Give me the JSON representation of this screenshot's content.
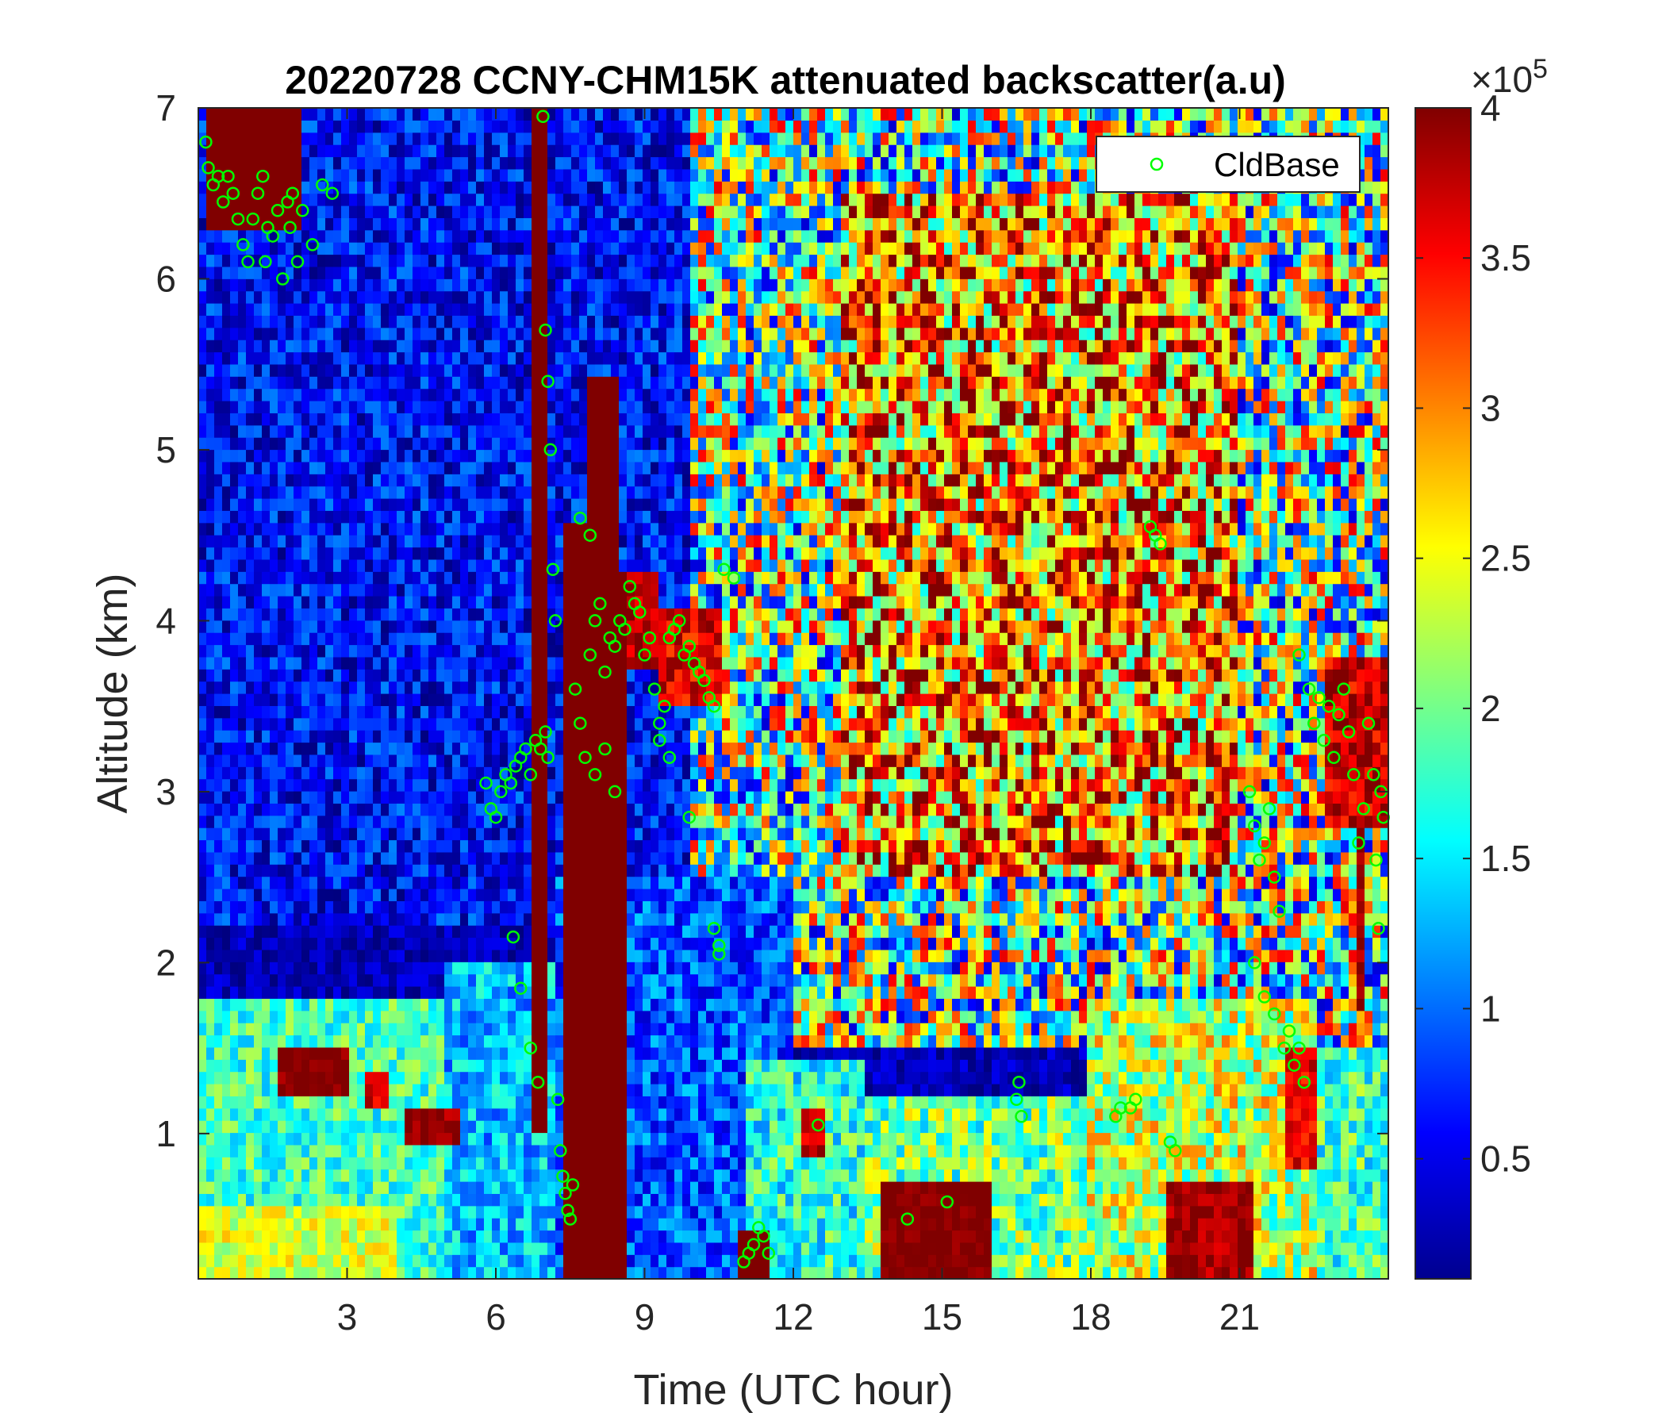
{
  "chart_data": {
    "type": "heatmap",
    "title": "20220728 CCNY-CHM15K attenuated backscatter(a.u)",
    "xlabel": "Time (UTC hour)",
    "ylabel": "Altitude (km)",
    "xlim": [
      0,
      24
    ],
    "ylim": [
      0.15,
      7
    ],
    "xticks": [
      3,
      6,
      9,
      12,
      15,
      18,
      21
    ],
    "xtick_labels": [
      "3",
      "6",
      "9",
      "12",
      "15",
      "18",
      "21"
    ],
    "yticks": [
      1,
      2,
      3,
      4,
      5,
      6,
      7
    ],
    "ytick_labels": [
      "1",
      "2",
      "3",
      "4",
      "5",
      "6",
      "7"
    ],
    "colorbar": {
      "colormap": "jet",
      "range": [
        0.1,
        4
      ],
      "ticks": [
        0.5,
        1,
        1.5,
        2,
        2.5,
        3,
        3.5,
        4
      ],
      "tick_labels": [
        "0.5",
        "1",
        "1.5",
        "2",
        "2.5",
        "3",
        "3.5",
        "4"
      ],
      "multiplier_base": "×10",
      "multiplier_exp": "5"
    },
    "legend": {
      "position": "top-right",
      "entries": [
        {
          "label": "CldBase",
          "marker": "circle",
          "color": "#00ff00"
        }
      ]
    },
    "regions": [
      {
        "x0": 0,
        "x1": 24,
        "y0": 2.2,
        "y1": 7,
        "level": 0.6,
        "noise": 0.5
      },
      {
        "x0": 10,
        "x1": 24,
        "y0": 1.5,
        "y1": 7,
        "level": 2.0,
        "noise": 1.6
      },
      {
        "x0": 13,
        "x1": 21,
        "y0": 2.5,
        "y1": 6.5,
        "level": 3.0,
        "noise": 1.4
      },
      {
        "x0": 0,
        "x1": 5,
        "y0": 0.15,
        "y1": 1.8,
        "level": 1.8,
        "noise": 0.5
      },
      {
        "x0": 5,
        "x1": 7.2,
        "y0": 0.15,
        "y1": 2.0,
        "level": 1.3,
        "noise": 0.5
      },
      {
        "x0": 0,
        "x1": 4,
        "y0": 0.15,
        "y1": 0.6,
        "level": 2.4,
        "noise": 0.4
      },
      {
        "x0": 7.2,
        "x1": 12,
        "y0": 0.15,
        "y1": 2.5,
        "level": 0.9,
        "noise": 0.5
      },
      {
        "x0": 11,
        "x1": 13.5,
        "y0": 0.15,
        "y1": 1.4,
        "level": 1.7,
        "noise": 0.6
      },
      {
        "x0": 13.5,
        "x1": 24,
        "y0": 0.15,
        "y1": 1.2,
        "level": 2.0,
        "noise": 0.7
      },
      {
        "x0": 18,
        "x1": 22.5,
        "y0": 0.15,
        "y1": 1.8,
        "level": 2.3,
        "noise": 0.8
      },
      {
        "x0": 22.5,
        "x1": 24,
        "y0": 0.15,
        "y1": 1.5,
        "level": 1.8,
        "noise": 0.6
      },
      {
        "x0": 0.1,
        "x1": 2.1,
        "y0": 6.3,
        "y1": 7,
        "level": 4,
        "noise": 0
      },
      {
        "x0": 1.6,
        "x1": 3.0,
        "y0": 1.25,
        "y1": 1.5,
        "level": 4,
        "noise": 0.2
      },
      {
        "x0": 3.3,
        "x1": 3.9,
        "y0": 1.15,
        "y1": 1.35,
        "level": 3.6,
        "noise": 0.3
      },
      {
        "x0": 4.1,
        "x1": 5.2,
        "y0": 0.9,
        "y1": 1.15,
        "level": 3.8,
        "noise": 0.3
      },
      {
        "x0": 6.8,
        "x1": 7.0,
        "y0": 1.0,
        "y1": 7,
        "level": 4,
        "noise": 0
      },
      {
        "x0": 7.3,
        "x1": 8.0,
        "y0": 0.15,
        "y1": 4.6,
        "level": 4,
        "noise": 0
      },
      {
        "x0": 7.9,
        "x1": 8.4,
        "y0": 0.15,
        "y1": 5.4,
        "level": 4,
        "noise": 0
      },
      {
        "x0": 8.4,
        "x1": 8.65,
        "y0": 0.15,
        "y1": 4.3,
        "level": 4,
        "noise": 0
      },
      {
        "x0": 8.7,
        "x1": 9.3,
        "y0": 3.7,
        "y1": 4.3,
        "level": 3.8,
        "noise": 0.3
      },
      {
        "x0": 9.3,
        "x1": 10.6,
        "y0": 3.5,
        "y1": 4.1,
        "level": 3.6,
        "noise": 0.4
      },
      {
        "x0": 10.9,
        "x1": 11.5,
        "y0": 0.15,
        "y1": 0.4,
        "level": 4,
        "noise": 0
      },
      {
        "x0": 12.2,
        "x1": 12.7,
        "y0": 0.85,
        "y1": 1.15,
        "level": 3.7,
        "noise": 0.3
      },
      {
        "x0": 13.7,
        "x1": 16.0,
        "y0": 0.15,
        "y1": 0.7,
        "level": 4,
        "noise": 0.15
      },
      {
        "x0": 19.6,
        "x1": 21.3,
        "y0": 0.15,
        "y1": 0.75,
        "level": 3.9,
        "noise": 0.3
      },
      {
        "x0": 22.0,
        "x1": 22.5,
        "y0": 0.8,
        "y1": 1.5,
        "level": 3.6,
        "noise": 0.3
      },
      {
        "x0": 22.8,
        "x1": 24,
        "y0": 2.8,
        "y1": 3.8,
        "level": 3.7,
        "noise": 0.4
      },
      {
        "x0": 23.3,
        "x1": 23.5,
        "y0": 1.7,
        "y1": 2.8,
        "level": 3.9,
        "noise": 0.2
      }
    ],
    "series": [
      {
        "name": "CldBase",
        "x": [
          0.15,
          0.2,
          0.3,
          0.4,
          0.5,
          0.6,
          0.7,
          0.8,
          0.9,
          1.0,
          1.1,
          1.2,
          1.3,
          1.35,
          1.4,
          1.5,
          1.6,
          1.7,
          1.8,
          1.85,
          1.9,
          2.0,
          2.1,
          2.3,
          2.5,
          2.7,
          5.8,
          5.9,
          6.0,
          6.1,
          6.2,
          6.3,
          6.4,
          6.5,
          6.6,
          6.7,
          6.8,
          6.9,
          7.0,
          7.05,
          6.35,
          6.5,
          6.7,
          6.85,
          6.95,
          7.0,
          7.05,
          7.1,
          7.15,
          7.2,
          7.25,
          7.3,
          7.35,
          7.4,
          7.45,
          7.5,
          7.55,
          7.6,
          7.7,
          7.8,
          7.9,
          8.0,
          8.1,
          8.2,
          8.3,
          8.4,
          8.5,
          8.6,
          8.7,
          8.8,
          8.9,
          9.0,
          9.1,
          9.2,
          9.3,
          9.4,
          9.5,
          9.6,
          9.7,
          9.8,
          9.9,
          10.0,
          10.1,
          10.2,
          10.3,
          10.4,
          10.5,
          10.6,
          7.7,
          7.9,
          8.0,
          8.2,
          8.4,
          9.3,
          9.5,
          9.9,
          10.4,
          10.5,
          10.8,
          11.0,
          11.1,
          11.2,
          11.3,
          11.4,
          11.5,
          12.5,
          14.3,
          15.1,
          16.5,
          16.55,
          16.6,
          18.5,
          18.6,
          18.8,
          18.9,
          19.2,
          19.3,
          19.4,
          19.6,
          19.7,
          21.2,
          21.3,
          21.4,
          21.5,
          21.6,
          21.7,
          21.8,
          21.3,
          21.5,
          21.7,
          21.9,
          22.0,
          22.1,
          22.2,
          22.3,
          22.2,
          22.4,
          22.5,
          22.6,
          22.7,
          22.8,
          22.9,
          23.0,
          23.1,
          23.2,
          23.3,
          23.4,
          23.5,
          23.6,
          23.7,
          23.75,
          23.8,
          23.85,
          23.9
        ],
        "y": [
          6.8,
          6.65,
          6.55,
          6.6,
          6.45,
          6.6,
          6.5,
          6.35,
          6.2,
          6.1,
          6.35,
          6.5,
          6.6,
          6.1,
          6.3,
          6.25,
          6.4,
          6.0,
          6.45,
          6.3,
          6.5,
          6.1,
          6.4,
          6.2,
          6.55,
          6.5,
          3.05,
          2.9,
          2.85,
          3.0,
          3.1,
          3.05,
          3.15,
          3.2,
          3.25,
          3.1,
          3.3,
          3.25,
          3.35,
          3.2,
          2.15,
          1.85,
          1.5,
          1.3,
          6.95,
          5.7,
          5.4,
          5.0,
          4.3,
          4.0,
          1.2,
          0.9,
          0.75,
          0.65,
          0.55,
          0.5,
          0.7,
          3.6,
          3.4,
          3.2,
          3.8,
          4.0,
          4.1,
          3.7,
          3.9,
          3.85,
          4.0,
          3.95,
          4.2,
          4.1,
          4.05,
          3.8,
          3.9,
          3.6,
          3.3,
          3.5,
          3.9,
          3.95,
          4.0,
          3.8,
          3.85,
          3.75,
          3.7,
          3.65,
          3.55,
          3.5,
          2.1,
          4.3,
          4.6,
          4.5,
          3.1,
          3.25,
          3.0,
          3.4,
          3.2,
          2.85,
          2.2,
          2.05,
          4.25,
          0.25,
          0.3,
          0.35,
          0.45,
          0.4,
          0.3,
          1.05,
          0.5,
          0.6,
          1.2,
          1.3,
          1.1,
          1.1,
          1.15,
          1.15,
          1.2,
          4.55,
          4.5,
          4.45,
          0.95,
          0.9,
          3.0,
          2.8,
          2.6,
          2.7,
          2.9,
          2.5,
          2.3,
          2.0,
          1.8,
          1.7,
          1.5,
          1.6,
          1.4,
          1.5,
          1.3,
          3.8,
          3.6,
          3.4,
          3.55,
          3.3,
          3.5,
          3.2,
          3.45,
          3.6,
          3.35,
          3.1,
          2.7,
          2.9,
          3.4,
          3.1,
          2.6,
          2.2,
          3.0,
          2.85
        ],
        "color": "#00ff00"
      }
    ]
  }
}
